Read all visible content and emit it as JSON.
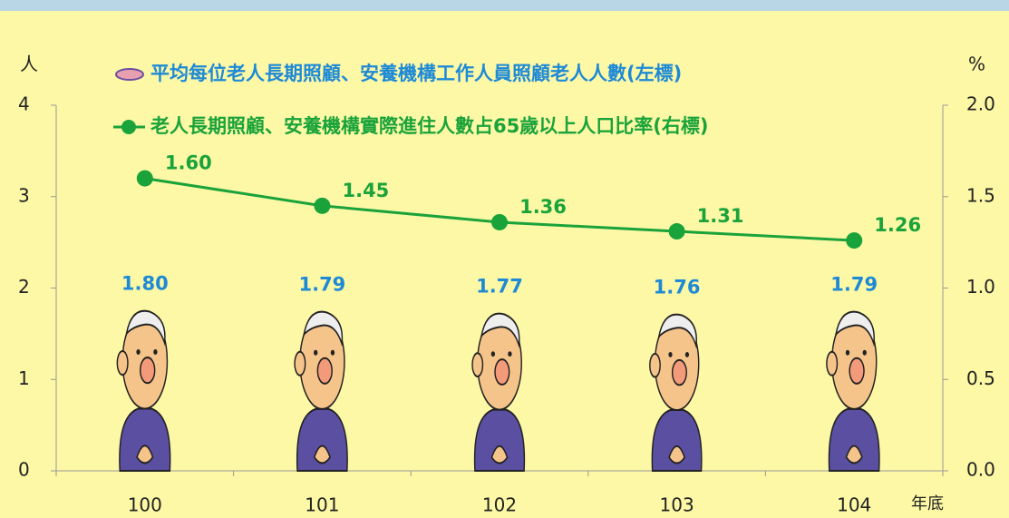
{
  "chart_data": {
    "type": "combo",
    "y_label": "人",
    "y2_label": "%",
    "x_label": "年底",
    "categories": [
      "100",
      "101",
      "102",
      "103",
      "104"
    ],
    "ylim": [
      0,
      4
    ],
    "yticks": [
      0,
      1,
      2,
      3,
      4
    ],
    "y2lim": [
      0,
      2
    ],
    "y2ticks": [
      {
        "value": 0,
        "label": "0.0"
      },
      {
        "value": 0.5,
        "label": "0.5"
      },
      {
        "value": 1,
        "label": "1.0"
      },
      {
        "value": 1.5,
        "label": "1.5"
      },
      {
        "value": 2,
        "label": "2.0"
      }
    ],
    "series": [
      {
        "name": "平均每位老人長期照顧、安養機構工作人員照顧老人人數(左標)",
        "type": "pictograph",
        "color": "#1e8ad6",
        "values": [
          1.8,
          1.79,
          1.77,
          1.76,
          1.79
        ],
        "value_labels": [
          "1.80",
          "1.79",
          "1.77",
          "1.76",
          "1.79"
        ]
      },
      {
        "name": "老人長期照顧、安養機構實際進住人數占65歲以上人口比率(右標)",
        "type": "line",
        "color": "#1aa33a",
        "axis": "y2",
        "values": [
          1.6,
          1.45,
          1.36,
          1.31,
          1.26
        ],
        "value_labels": [
          "1.60",
          "1.45",
          "1.36",
          "1.31",
          "1.26"
        ]
      }
    ]
  }
}
